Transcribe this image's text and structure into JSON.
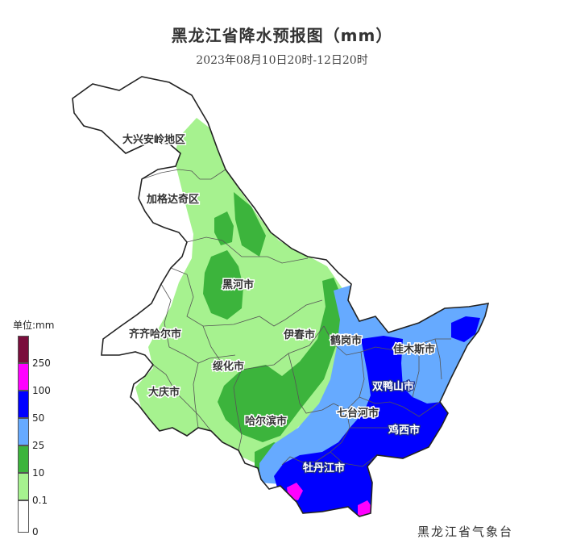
{
  "title": "黑龙江省降水预报图（mm）",
  "subtitle": "2023年08月10日20时-12日20时",
  "agency": "黑龙江省气象台",
  "legend": {
    "title": "单位:mm",
    "bins": [
      {
        "label": "250",
        "color": "#7a0e3c"
      },
      {
        "label": "100",
        "color": "#ff00ff"
      },
      {
        "label": "50",
        "color": "#0000ff"
      },
      {
        "label": "25",
        "color": "#66aaff"
      },
      {
        "label": "10",
        "color": "#3cb43c"
      },
      {
        "label": "0.1",
        "color": "#a6f28f"
      },
      {
        "label": "0",
        "color": "#ffffff"
      }
    ]
  },
  "regions": [
    {
      "name": "大兴安岭地区",
      "category": "0-0.1"
    },
    {
      "name": "加格达奇区",
      "category": "0-0.1"
    },
    {
      "name": "黑河市",
      "category": "0.1-10"
    },
    {
      "name": "齐齐哈尔市",
      "category": "0-10"
    },
    {
      "name": "伊春市",
      "category": "0.1-10"
    },
    {
      "name": "鹤岗市",
      "category": "10-25"
    },
    {
      "name": "佳木斯市",
      "category": "25-50"
    },
    {
      "name": "绥化市",
      "category": "0.1-10"
    },
    {
      "name": "大庆市",
      "category": "0-0.1"
    },
    {
      "name": "双鸭山市",
      "category": "50-100"
    },
    {
      "name": "哈尔滨市",
      "category": "0.1-25"
    },
    {
      "name": "七台河市",
      "category": "25-50"
    },
    {
      "name": "鸡西市",
      "category": "50-100"
    },
    {
      "name": "牡丹江市",
      "category": "50-100"
    }
  ]
}
